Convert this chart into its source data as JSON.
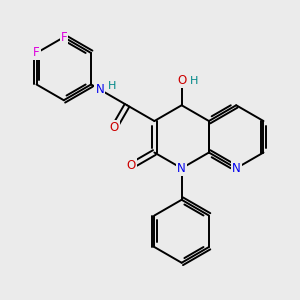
{
  "bg_color": "#ebebeb",
  "bond_color": "#000000",
  "bond_width": 1.4,
  "atom_colors": {
    "N": "#0000ee",
    "O": "#cc0000",
    "F": "#dd00dd",
    "H": "#008888"
  },
  "font_size": 8.5
}
